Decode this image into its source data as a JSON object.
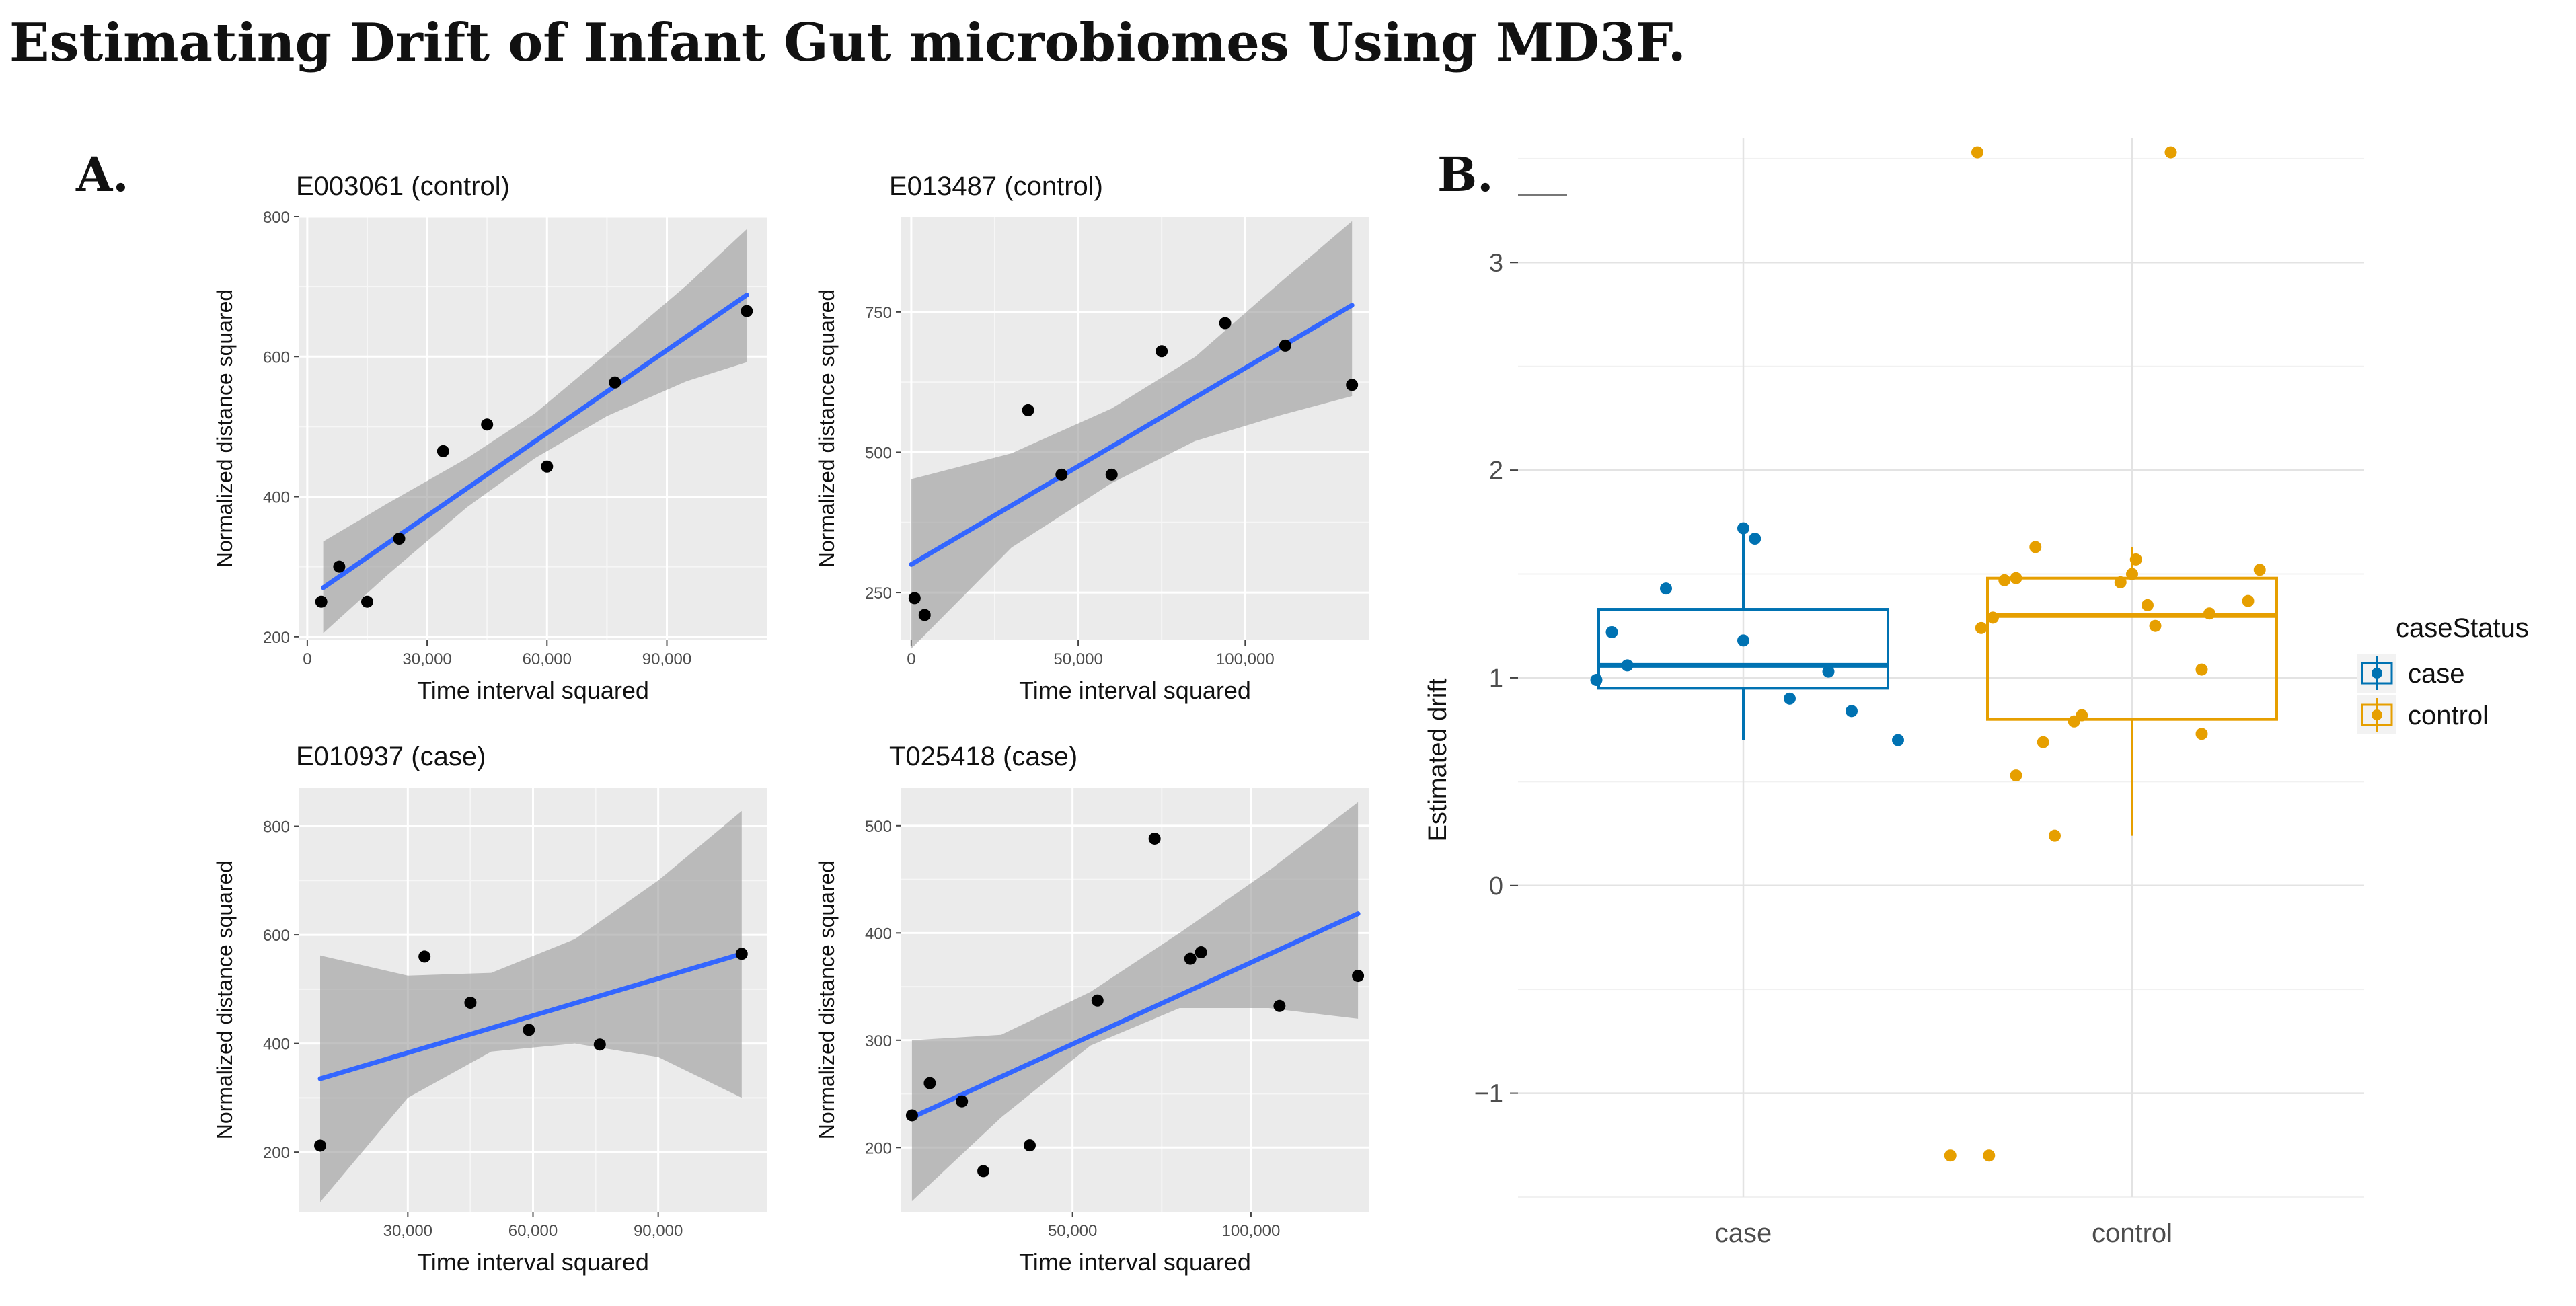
{
  "figure": {
    "title": "Estimating Drift of Infant Gut microbiomes Using MD3F.",
    "panel_a_label": "A.",
    "panel_b_label": "B."
  },
  "chart_data": [
    {
      "id": "E003061",
      "type": "scatter",
      "title": "E003061 (control)",
      "xlabel": "Time interval squared",
      "ylabel": "Normalized distance squared",
      "xlim": [
        -2000,
        115000
      ],
      "ylim": [
        195,
        800
      ],
      "xticks": [
        0,
        30000,
        60000,
        90000
      ],
      "xtick_labels": [
        "0",
        "30,000",
        "60,000",
        "90,000"
      ],
      "yticks": [
        200,
        400,
        600,
        800
      ],
      "ytick_labels": [
        "200",
        "400",
        "600",
        "800"
      ],
      "points": [
        [
          3500,
          250
        ],
        [
          8000,
          300
        ],
        [
          15000,
          250
        ],
        [
          23000,
          340
        ],
        [
          34000,
          465
        ],
        [
          45000,
          503
        ],
        [
          60000,
          443
        ],
        [
          77000,
          563
        ],
        [
          110000,
          665
        ]
      ],
      "fit": {
        "x": [
          4000,
          110000
        ],
        "y": [
          270,
          688
        ]
      },
      "band": {
        "x": [
          4000,
          20000,
          40000,
          57000,
          75000,
          95000,
          110000
        ],
        "lower": [
          205,
          288,
          385,
          455,
          515,
          565,
          592
        ],
        "upper": [
          336,
          390,
          455,
          519,
          605,
          702,
          782
        ]
      }
    },
    {
      "id": "E013487",
      "type": "scatter",
      "title": "E013487 (control)",
      "xlabel": "Time interval squared",
      "ylabel": "Normalized distance squared",
      "xlim": [
        -3000,
        137000
      ],
      "ylim": [
        165,
        920
      ],
      "xticks": [
        0,
        50000,
        100000
      ],
      "xtick_labels": [
        "0",
        "50,000",
        "100,000"
      ],
      "yticks": [
        250,
        500,
        750
      ],
      "ytick_labels": [
        "250",
        "500",
        "750"
      ],
      "points": [
        [
          1000,
          240
        ],
        [
          4000,
          210
        ],
        [
          35000,
          575
        ],
        [
          45000,
          460
        ],
        [
          60000,
          460
        ],
        [
          75000,
          680
        ],
        [
          94000,
          730
        ],
        [
          112000,
          690
        ],
        [
          132000,
          620
        ]
      ],
      "fit": {
        "x": [
          0,
          132000
        ],
        "y": [
          300,
          762
        ]
      },
      "band": {
        "x": [
          0,
          30000,
          60000,
          85000,
          110000,
          132000
        ],
        "lower": [
          150,
          330,
          445,
          520,
          565,
          600
        ],
        "upper": [
          452,
          498,
          578,
          670,
          800,
          912
        ]
      }
    },
    {
      "id": "E010937",
      "type": "scatter",
      "title": "E010937 (case)",
      "xlabel": "Time interval squared",
      "ylabel": "Normalized distance squared",
      "xlim": [
        4000,
        116000
      ],
      "ylim": [
        90,
        870
      ],
      "xticks": [
        30000,
        60000,
        90000
      ],
      "xtick_labels": [
        "30,000",
        "60,000",
        "90,000"
      ],
      "yticks": [
        200,
        400,
        600,
        800
      ],
      "ytick_labels": [
        "200",
        "400",
        "600",
        "800"
      ],
      "points": [
        [
          9000,
          212
        ],
        [
          34000,
          560
        ],
        [
          45000,
          475
        ],
        [
          59000,
          425
        ],
        [
          76000,
          398
        ],
        [
          110000,
          565
        ]
      ],
      "fit": {
        "x": [
          9000,
          110000
        ],
        "y": [
          335,
          565
        ]
      },
      "band": {
        "x": [
          9000,
          30000,
          50000,
          70000,
          90000,
          110000
        ],
        "lower": [
          108,
          300,
          385,
          400,
          375,
          300
        ],
        "upper": [
          562,
          525,
          530,
          592,
          700,
          828
        ]
      }
    },
    {
      "id": "T025418",
      "type": "scatter",
      "title": "T025418 (case)",
      "xlabel": "Time interval squared",
      "ylabel": "Normalized distance squared",
      "xlim": [
        2000,
        133000
      ],
      "ylim": [
        140,
        535
      ],
      "xticks": [
        50000,
        100000
      ],
      "xtick_labels": [
        "50,000",
        "100,000"
      ],
      "yticks": [
        200,
        300,
        400,
        500
      ],
      "ytick_labels": [
        "200",
        "300",
        "400",
        "500"
      ],
      "points": [
        [
          5000,
          230
        ],
        [
          10000,
          260
        ],
        [
          19000,
          243
        ],
        [
          25000,
          178
        ],
        [
          38000,
          202
        ],
        [
          57000,
          337
        ],
        [
          73000,
          488
        ],
        [
          83000,
          376
        ],
        [
          86000,
          382
        ],
        [
          108000,
          332
        ],
        [
          130000,
          360
        ]
      ],
      "fit": {
        "x": [
          5000,
          130000
        ],
        "y": [
          228,
          418
        ]
      },
      "band": {
        "x": [
          5000,
          30000,
          55000,
          80000,
          105000,
          130000
        ],
        "lower": [
          150,
          228,
          295,
          330,
          330,
          320
        ],
        "upper": [
          300,
          305,
          345,
          400,
          458,
          522
        ]
      }
    },
    {
      "id": "drift",
      "type": "box",
      "xlabel": "",
      "ylabel": "Estimated drift",
      "categories": [
        "case",
        "control"
      ],
      "ylim": [
        -1.5,
        3.6
      ],
      "yticks": [
        -1,
        0,
        1,
        2,
        3
      ],
      "ytick_labels": [
        "−1",
        "0",
        "1",
        "2",
        "3"
      ],
      "legend_title": "caseStatus",
      "legend_position": "right",
      "series": [
        {
          "name": "case",
          "color": "#0072B2",
          "box": {
            "q1": 0.95,
            "median": 1.06,
            "q3": 1.33,
            "whisker_low": 0.7,
            "whisker_high": 1.72
          },
          "points": [
            [
              -0.38,
              0.99
            ],
            [
              -0.34,
              1.22
            ],
            [
              -0.3,
              1.06
            ],
            [
              -0.2,
              1.43
            ],
            [
              0.0,
              1.72
            ],
            [
              0.0,
              1.18
            ],
            [
              0.03,
              1.67
            ],
            [
              0.12,
              0.9
            ],
            [
              0.22,
              1.03
            ],
            [
              0.28,
              0.84
            ],
            [
              0.4,
              0.7
            ]
          ]
        },
        {
          "name": "control",
          "color": "#E69F00",
          "box": {
            "q1": 0.8,
            "median": 1.3,
            "q3": 1.48,
            "whisker_low": 0.24,
            "whisker_high": 1.63
          },
          "points": [
            [
              -0.4,
              3.53
            ],
            [
              0.1,
              3.53
            ],
            [
              -0.39,
              1.24
            ],
            [
              -0.36,
              1.29
            ],
            [
              -0.33,
              1.47
            ],
            [
              -0.3,
              1.48
            ],
            [
              -0.25,
              1.63
            ],
            [
              -0.23,
              0.69
            ],
            [
              -0.3,
              0.53
            ],
            [
              -0.2,
              0.24
            ],
            [
              -0.15,
              0.79
            ],
            [
              -0.13,
              0.82
            ],
            [
              -0.03,
              1.46
            ],
            [
              0.0,
              1.5
            ],
            [
              0.01,
              1.57
            ],
            [
              0.04,
              1.35
            ],
            [
              0.06,
              1.25
            ],
            [
              0.18,
              1.04
            ],
            [
              0.18,
              0.73
            ],
            [
              0.2,
              1.31
            ],
            [
              0.3,
              1.37
            ],
            [
              0.33,
              1.52
            ],
            [
              -0.47,
              -1.3
            ],
            [
              -0.37,
              -1.3
            ]
          ]
        }
      ]
    }
  ]
}
